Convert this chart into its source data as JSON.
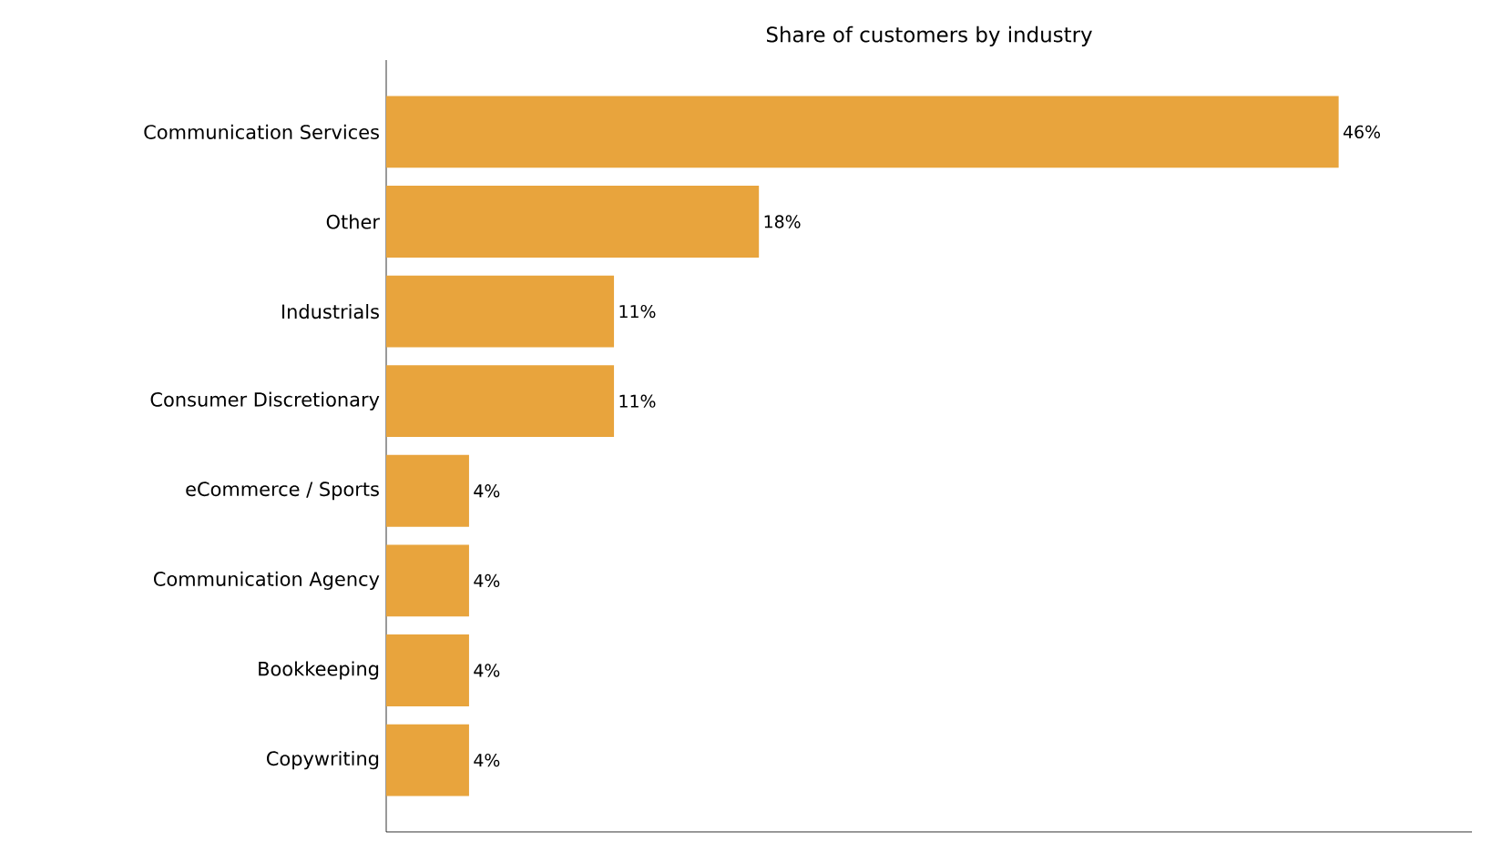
{
  "chart_data": {
    "type": "bar",
    "orientation": "horizontal",
    "title": "Share of customers by industry",
    "categories": [
      "Communication Services",
      "Other",
      "Industrials",
      "Consumer Discretionary",
      "eCommerce / Sports",
      "Communication Agency",
      "Bookkeeping",
      "Copywriting"
    ],
    "values": [
      46,
      18,
      11,
      11,
      4,
      4,
      4,
      4
    ],
    "value_labels": [
      "46%",
      "18%",
      "11%",
      "11%",
      "4%",
      "4%",
      "4%",
      "4%"
    ],
    "color": "#e8a43d",
    "tick_labels": "y"
  }
}
